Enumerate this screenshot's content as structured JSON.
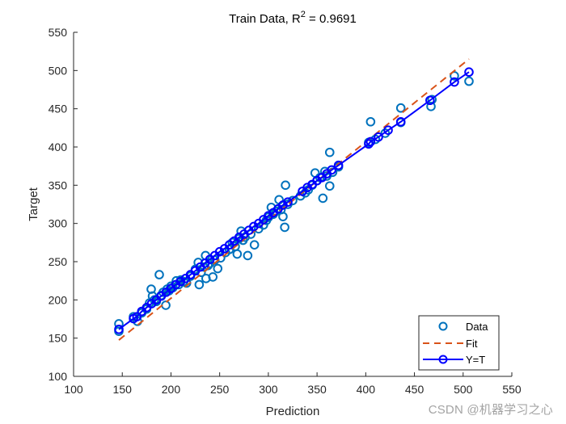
{
  "chart_data": {
    "type": "scatter",
    "title": "Train Data, R² = 0.9691",
    "title_main": "Train Data, R",
    "title_sup": "2",
    "title_tail": " = 0.9691",
    "xlabel": "Prediction",
    "ylabel": "Target",
    "xlim": [
      100,
      550
    ],
    "ylim": [
      100,
      550
    ],
    "xticks": [
      100,
      150,
      200,
      250,
      300,
      350,
      400,
      450,
      500,
      550
    ],
    "yticks": [
      100,
      150,
      200,
      250,
      300,
      350,
      400,
      450,
      500,
      550
    ],
    "grid": false,
    "legend_position": "southeast",
    "r_squared": 0.9691,
    "series": [
      {
        "name": "Data",
        "style": "markers-circle",
        "color": "#0072BD",
        "points": [
          [
            146.5,
            168.7
          ],
          [
            146.5,
            159
          ],
          [
            161.5,
            178
          ],
          [
            165.6,
            172
          ],
          [
            170,
            183
          ],
          [
            175,
            188
          ],
          [
            178,
            196
          ],
          [
            179.7,
            214
          ],
          [
            181,
            205
          ],
          [
            183,
            200
          ],
          [
            185,
            198
          ],
          [
            188,
            233
          ],
          [
            190,
            206
          ],
          [
            192,
            210
          ],
          [
            194.7,
            193
          ],
          [
            196,
            214
          ],
          [
            198,
            212
          ],
          [
            200,
            218
          ],
          [
            202,
            216
          ],
          [
            205.5,
            225
          ],
          [
            208,
            220
          ],
          [
            210,
            226
          ],
          [
            213,
            224
          ],
          [
            216,
            222
          ],
          [
            220,
            231
          ],
          [
            225,
            240
          ],
          [
            228,
            249
          ],
          [
            229,
            220
          ],
          [
            231,
            236
          ],
          [
            234,
            243
          ],
          [
            235.5,
            258
          ],
          [
            236,
            228
          ],
          [
            238,
            245
          ],
          [
            240,
            248
          ],
          [
            243,
            230
          ],
          [
            245,
            252
          ],
          [
            248,
            241
          ],
          [
            251,
            255
          ],
          [
            256,
            262
          ],
          [
            260,
            266
          ],
          [
            263,
            275
          ],
          [
            266,
            270
          ],
          [
            268,
            260
          ],
          [
            270,
            280
          ],
          [
            272,
            290
          ],
          [
            274,
            278
          ],
          [
            276,
            282
          ],
          [
            278.8,
            258
          ],
          [
            282,
            286
          ],
          [
            285.7,
            272
          ],
          [
            290,
            293
          ],
          [
            295,
            298
          ],
          [
            298,
            304
          ],
          [
            300,
            308
          ],
          [
            303,
            321
          ],
          [
            305,
            312
          ],
          [
            308,
            316
          ],
          [
            311,
            331
          ],
          [
            313,
            318
          ],
          [
            315,
            309
          ],
          [
            316.8,
            295
          ],
          [
            317.6,
            350
          ],
          [
            320,
            325
          ],
          [
            325,
            330
          ],
          [
            333,
            336
          ],
          [
            338,
            340
          ],
          [
            341,
            344
          ],
          [
            345,
            350
          ],
          [
            348,
            366
          ],
          [
            350,
            356
          ],
          [
            353,
            360
          ],
          [
            356,
            333
          ],
          [
            358,
            368
          ],
          [
            360,
            362
          ],
          [
            363,
            393
          ],
          [
            363,
            349
          ],
          [
            366,
            367
          ],
          [
            372,
            374
          ],
          [
            403,
            406
          ],
          [
            405,
            433
          ],
          [
            410,
            410
          ],
          [
            420,
            418
          ],
          [
            436,
            451
          ],
          [
            436,
            432
          ],
          [
            467,
            453
          ],
          [
            468,
            462
          ],
          [
            491,
            493
          ],
          [
            506,
            486
          ]
        ]
      },
      {
        "name": "Fit",
        "style": "dashed-line",
        "color": "#D95319",
        "points": [
          [
            146.5,
            147.5
          ],
          [
            506,
            515
          ]
        ]
      },
      {
        "name": "Y=T",
        "style": "line-with-circle-markers",
        "color": "#0000FF",
        "points": [
          [
            146.5,
            161.5
          ],
          [
            161.5,
            175.5
          ],
          [
            165,
            178
          ],
          [
            170,
            185
          ],
          [
            175,
            190
          ],
          [
            180,
            195
          ],
          [
            185,
            200
          ],
          [
            190,
            205
          ],
          [
            195,
            210
          ],
          [
            200,
            215
          ],
          [
            205,
            220
          ],
          [
            210,
            224
          ],
          [
            215,
            228
          ],
          [
            220,
            233
          ],
          [
            225,
            238
          ],
          [
            230,
            243
          ],
          [
            235,
            248
          ],
          [
            240,
            253
          ],
          [
            245,
            258
          ],
          [
            250,
            263
          ],
          [
            255,
            267
          ],
          [
            260,
            272
          ],
          [
            265,
            277
          ],
          [
            270,
            282
          ],
          [
            275,
            286
          ],
          [
            280,
            291
          ],
          [
            285,
            296
          ],
          [
            290,
            300
          ],
          [
            295,
            305
          ],
          [
            300,
            310
          ],
          [
            305,
            314
          ],
          [
            310,
            319
          ],
          [
            315,
            324
          ],
          [
            320,
            328
          ],
          [
            335,
            342
          ],
          [
            340,
            347
          ],
          [
            345,
            351
          ],
          [
            350,
            356
          ],
          [
            355,
            360
          ],
          [
            360,
            365
          ],
          [
            365,
            370
          ],
          [
            372,
            376
          ],
          [
            403,
            404
          ],
          [
            405,
            407
          ],
          [
            413,
            413
          ],
          [
            423,
            422
          ],
          [
            436,
            433
          ],
          [
            466,
            461
          ],
          [
            491,
            485
          ],
          [
            506,
            498
          ]
        ]
      }
    ]
  },
  "legend": {
    "items": [
      {
        "label": "Data",
        "color": "#0072BD"
      },
      {
        "label": "Fit",
        "color": "#D95319"
      },
      {
        "label": "Y=T",
        "color": "#0000FF"
      }
    ]
  },
  "watermark": "CSDN @机器学习之心"
}
